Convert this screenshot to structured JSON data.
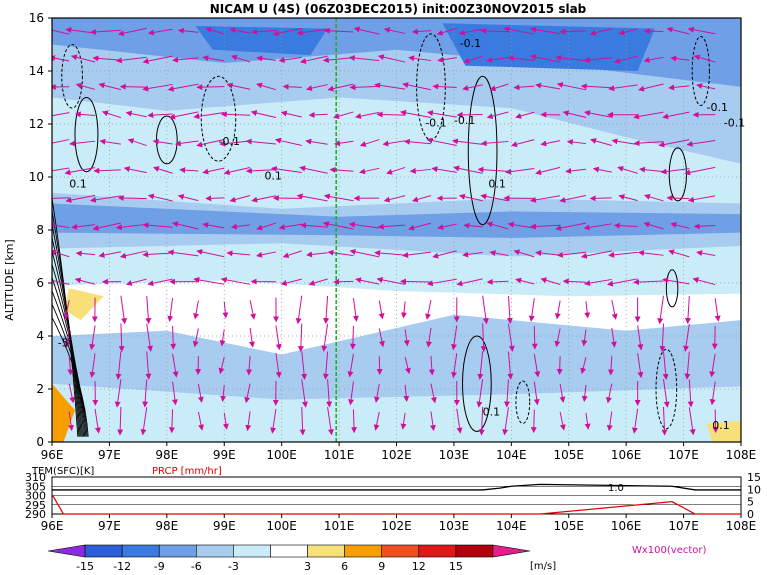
{
  "title": "NICAM U (4S) (06Z03DEC2015) init:00Z30NOV2015 slab",
  "chart_data": [
    {
      "type": "heatmap",
      "title": "NICAM U (4S) (06Z03DEC2015) init:00Z30NOV2015 slab",
      "xlabel": "",
      "ylabel": "ALTITUDE [km]",
      "x_ticks": [
        "96E",
        "97E",
        "98E",
        "99E",
        "100E",
        "101E",
        "102E",
        "103E",
        "104E",
        "105E",
        "106E",
        "107E",
        "108E"
      ],
      "y_ticks": [
        "0",
        "2",
        "4",
        "6",
        "8",
        "10",
        "12",
        "14",
        "16"
      ],
      "xlim": [
        96,
        108
      ],
      "ylim": [
        0,
        16
      ],
      "grid": true,
      "vertical_marker_x": 100.95,
      "wind_vector_label": "Wx100(vector)",
      "contour_labels": [
        {
          "text": "0.1",
          "x": 96.3,
          "y": 9.6
        },
        {
          "text": "-0.1",
          "x": 98.9,
          "y": 11.2
        },
        {
          "text": "0.1",
          "x": 99.7,
          "y": 9.9
        },
        {
          "text": "-0.1",
          "x": 103.1,
          "y": 14.9
        },
        {
          "text": "-0.1",
          "x": 102.5,
          "y": 11.9
        },
        {
          "text": "-0.1",
          "x": 103.0,
          "y": 12.0
        },
        {
          "text": "0.1",
          "x": 103.6,
          "y": 9.6
        },
        {
          "text": "-0.1",
          "x": 107.4,
          "y": 12.5
        },
        {
          "text": "-0.1",
          "x": 107.7,
          "y": 11.9
        },
        {
          "text": "-5",
          "x": 96.1,
          "y": 3.6
        },
        {
          "text": "0.1",
          "x": 103.5,
          "y": 1.0
        },
        {
          "text": "0.1",
          "x": 107.5,
          "y": 0.5
        }
      ]
    },
    {
      "type": "line",
      "series": [
        {
          "name": "TEM(SFC)[K]",
          "values": [
            303,
            303,
            303,
            303,
            303,
            303,
            303,
            303,
            303,
            303,
            303,
            303,
            304,
            305,
            306,
            305,
            303,
            303
          ]
        },
        {
          "name": "PRCP [mm/hr]",
          "values": [
            8,
            0,
            0,
            0,
            0,
            0,
            0,
            0,
            0,
            0,
            0,
            0,
            0,
            0,
            0,
            5,
            0,
            0
          ]
        }
      ],
      "x": [
        96,
        96.2,
        97,
        98,
        99,
        100,
        101,
        101.5,
        102,
        102.5,
        103,
        103.5,
        103.8,
        104,
        104.5,
        106.8,
        107.2,
        108
      ],
      "left_axis": {
        "label": "TEM(SFC)[K]",
        "ticks": [
          "310",
          "305",
          "300",
          "295",
          "290"
        ]
      },
      "right_axis": {
        "label": "PRCP [mm/hr]",
        "ticks": [
          "15",
          "10",
          "5",
          "0"
        ]
      },
      "x_ticks": [
        "96E",
        "97E",
        "98E",
        "99E",
        "100E",
        "101E",
        "102E",
        "103E",
        "104E",
        "105E",
        "106E",
        "107E",
        "108E"
      ],
      "annotation": "1.0"
    }
  ],
  "colorbar": {
    "ticks": [
      "-15",
      "-12",
      "-9",
      "-6",
      "-3",
      "3",
      "6",
      "9",
      "12",
      "15"
    ],
    "unit": "[m/s]",
    "colors": [
      "#8a2be2",
      "#2a5fd6",
      "#3a7be0",
      "#6f9fe6",
      "#a7ccef",
      "#c9ecf8",
      "#ffffff",
      "#f7e07a",
      "#f5a000",
      "#f05020",
      "#e01818",
      "#b00010",
      "#e51e8c"
    ]
  }
}
